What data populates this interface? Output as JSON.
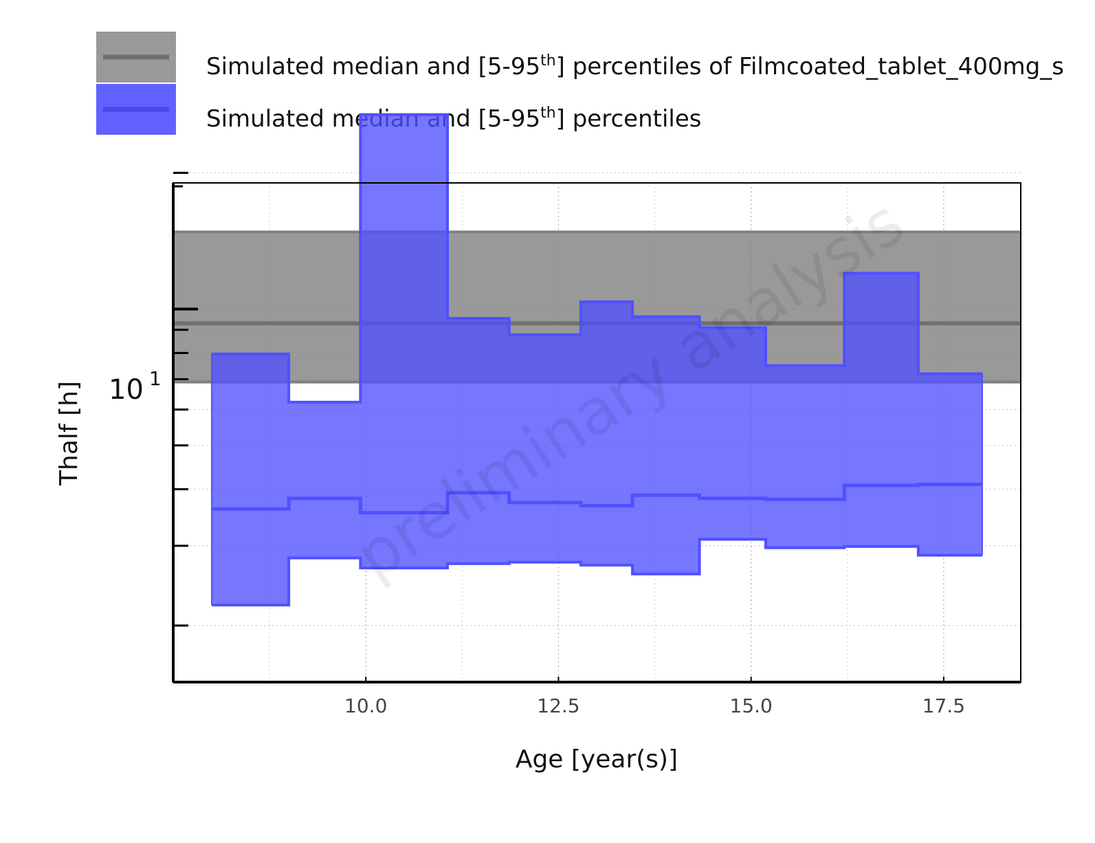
{
  "chart_data": {
    "type": "area",
    "watermark": "preliminary analysis",
    "xlabel": "Age [year(s)]",
    "ylabel": "Thalf [h]",
    "xlim": [
      7.5,
      18.5
    ],
    "ylim": [
      1.5,
      19.0
    ],
    "y_scale": "log",
    "x_ticks": [
      10.0,
      12.5,
      15.0,
      17.5
    ],
    "x_tick_labels": [
      "10.0",
      "12.5",
      "15.0",
      "17.5"
    ],
    "y_major_tick": {
      "value": 10,
      "base": "10",
      "exponent": "1"
    },
    "y_minor_ticks": [
      2,
      3,
      4,
      5,
      6,
      7,
      8,
      9,
      20
    ],
    "grid": true,
    "legend_position": "top-left, outside plot",
    "colors": {
      "reference": "#7f7f7f",
      "simulated": "#5050ff"
    },
    "series": [
      {
        "name": "Simulated median and [5-95th] percentiles of Filmcoated_tablet_400mg_s",
        "legend_prefix": "Simulated median and [5-95",
        "legend_sup": "th",
        "legend_suffix": "] percentiles of Filmcoated_tablet_400mg_s",
        "kind": "reference_band",
        "median": 9.3,
        "lower": 6.9,
        "upper": 14.8
      },
      {
        "name": "Simulated median and [5-95th] percentiles",
        "legend_prefix": "Simulated median and [5-95",
        "legend_sup": "th",
        "legend_suffix": "] percentiles",
        "kind": "step_band",
        "bins": [
          {
            "x0": 8.0,
            "x1": 9.0,
            "median": 3.62,
            "lower": 2.22,
            "upper": 7.96
          },
          {
            "x0": 9.0,
            "x1": 9.93,
            "median": 3.82,
            "lower": 2.82,
            "upper": 6.23
          },
          {
            "x0": 9.93,
            "x1": 11.06,
            "median": 3.55,
            "lower": 2.68,
            "upper": 26.9
          },
          {
            "x0": 11.06,
            "x1": 11.86,
            "median": 3.93,
            "lower": 2.74,
            "upper": 9.54
          },
          {
            "x0": 11.86,
            "x1": 12.79,
            "median": 3.74,
            "lower": 2.76,
            "upper": 8.78
          },
          {
            "x0": 12.79,
            "x1": 13.46,
            "median": 3.68,
            "lower": 2.72,
            "upper": 10.38
          },
          {
            "x0": 13.46,
            "x1": 14.33,
            "median": 3.88,
            "lower": 2.6,
            "upper": 9.62
          },
          {
            "x0": 14.33,
            "x1": 15.19,
            "median": 3.82,
            "lower": 3.1,
            "upper": 9.1
          },
          {
            "x0": 15.19,
            "x1": 16.21,
            "median": 3.8,
            "lower": 2.97,
            "upper": 7.5
          },
          {
            "x0": 16.21,
            "x1": 17.17,
            "median": 4.08,
            "lower": 2.99,
            "upper": 12.0
          },
          {
            "x0": 17.17,
            "x1": 18.0,
            "median": 4.1,
            "lower": 2.86,
            "upper": 7.2
          }
        ]
      }
    ]
  }
}
